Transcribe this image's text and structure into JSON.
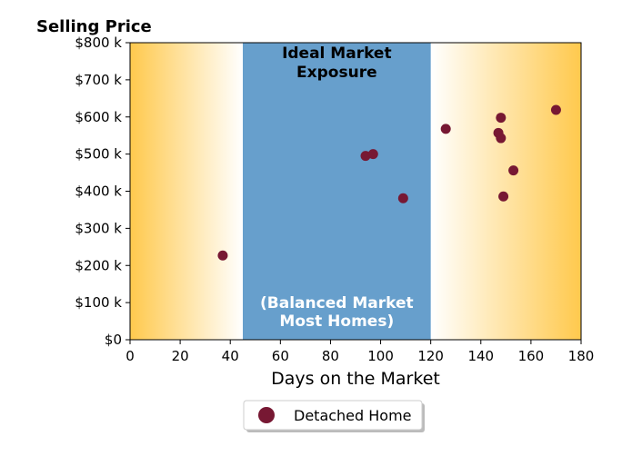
{
  "chart_data": {
    "type": "scatter",
    "title": "Selling Price",
    "xlabel": "Days on the Market",
    "xlim": [
      0,
      180
    ],
    "ylim": [
      0,
      800000
    ],
    "x_ticks": [
      0,
      20,
      40,
      60,
      80,
      100,
      120,
      140,
      160,
      180
    ],
    "x_tick_labels": [
      "0",
      "20",
      "40",
      "60",
      "80",
      "100",
      "120",
      "140",
      "160",
      "180"
    ],
    "y_ticks": [
      0,
      100000,
      200000,
      300000,
      400000,
      500000,
      600000,
      700000,
      800000
    ],
    "y_tick_labels": [
      "$0",
      "$100 k",
      "$200 k",
      "$300 k",
      "$400 k",
      "$500 k",
      "$600 k",
      "$700 k",
      "$800 k"
    ],
    "grid": false,
    "legend_placement": "below",
    "background_color": "#ffc94d",
    "band": {
      "x_start": 45,
      "x_end": 120,
      "color": "#679fcc",
      "title_lines": [
        "Ideal Market",
        "Exposure"
      ],
      "subtitle_lines": [
        "(Balanced Market",
        "Most Homes)"
      ]
    },
    "series": [
      {
        "name": "Detached Home",
        "color": "#771833",
        "points": [
          {
            "x": 37,
            "y": 227000
          },
          {
            "x": 94,
            "y": 495000
          },
          {
            "x": 97,
            "y": 500000
          },
          {
            "x": 109,
            "y": 381000
          },
          {
            "x": 126,
            "y": 568000
          },
          {
            "x": 147,
            "y": 557000
          },
          {
            "x": 148,
            "y": 598000
          },
          {
            "x": 148,
            "y": 543000
          },
          {
            "x": 149,
            "y": 386000
          },
          {
            "x": 153,
            "y": 456000
          },
          {
            "x": 170,
            "y": 619000
          }
        ]
      }
    ]
  }
}
